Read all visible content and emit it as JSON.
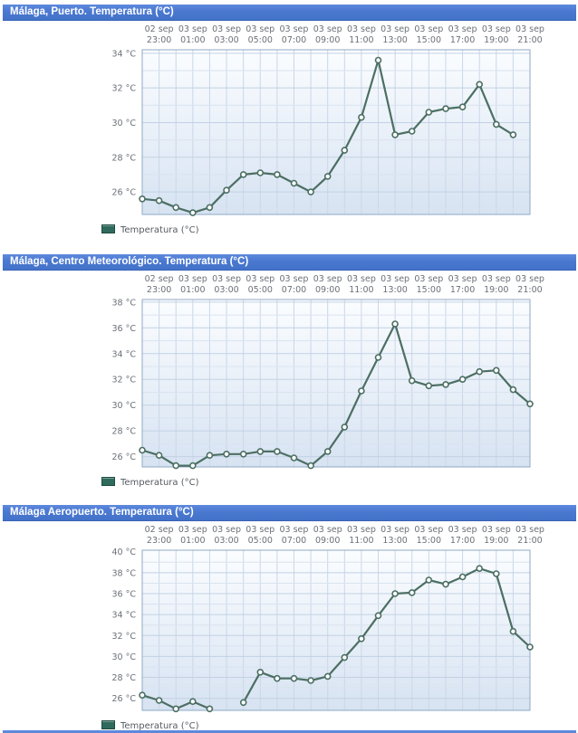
{
  "colors": {
    "header_bar": "#4A78D0",
    "header_text": "#FFFFFF",
    "line": "#4C6F63",
    "marker_fill": "#FFFFFF",
    "legend_swatch": "#2F6B5C",
    "plot_border": "#8FA8C6",
    "grid_vertical": "#C9D7E8",
    "grid_major": "#C2D1E4",
    "grid_minor": "#D9E3F0",
    "plot_bg_top": "#FBFDFF",
    "plot_bg_bottom": "#D7E3F2",
    "axis_text": "#6B7077"
  },
  "chart_data": [
    {
      "type": "line",
      "title": "Málaga, Puerto. Temperatura (°C)",
      "series_name": "Temperatura (°C)",
      "grid": true,
      "legend_position": "bottom-left",
      "x_ticks": [
        {
          "date": "02 sep",
          "time": "23:00"
        },
        {
          "date": "03 sep",
          "time": "01:00"
        },
        {
          "date": "03 sep",
          "time": "03:00"
        },
        {
          "date": "03 sep",
          "time": "05:00"
        },
        {
          "date": "03 sep",
          "time": "07:00"
        },
        {
          "date": "03 sep",
          "time": "09:00"
        },
        {
          "date": "03 sep",
          "time": "11:00"
        },
        {
          "date": "03 sep",
          "time": "13:00"
        },
        {
          "date": "03 sep",
          "time": "15:00"
        },
        {
          "date": "03 sep",
          "time": "17:00"
        },
        {
          "date": "03 sep",
          "time": "19:00"
        },
        {
          "date": "03 sep",
          "time": "21:00"
        }
      ],
      "hours": [
        "22:00",
        "23:00",
        "00:00",
        "01:00",
        "02:00",
        "03:00",
        "04:00",
        "05:00",
        "06:00",
        "07:00",
        "08:00",
        "09:00",
        "10:00",
        "11:00",
        "12:00",
        "13:00",
        "14:00",
        "15:00",
        "16:00",
        "17:00",
        "18:00",
        "19:00",
        "20:00",
        "21:00"
      ],
      "values": [
        25.6,
        25.5,
        25.1,
        24.8,
        25.1,
        26.1,
        27.0,
        27.1,
        27.0,
        26.5,
        26.0,
        26.9,
        28.4,
        30.3,
        33.6,
        29.3,
        29.5,
        30.6,
        30.8,
        30.9,
        32.2,
        29.9,
        29.3,
        null
      ],
      "ylim": [
        24.7,
        34.2
      ],
      "yticks": [
        26,
        28,
        30,
        32,
        34
      ]
    },
    {
      "type": "line",
      "title": "Málaga, Centro Meteorológico. Temperatura (°C)",
      "series_name": "Temperatura (°C)",
      "grid": true,
      "legend_position": "bottom-left",
      "x_ticks": [
        {
          "date": "02 sep",
          "time": "23:00"
        },
        {
          "date": "03 sep",
          "time": "01:00"
        },
        {
          "date": "03 sep",
          "time": "03:00"
        },
        {
          "date": "03 sep",
          "time": "05:00"
        },
        {
          "date": "03 sep",
          "time": "07:00"
        },
        {
          "date": "03 sep",
          "time": "09:00"
        },
        {
          "date": "03 sep",
          "time": "11:00"
        },
        {
          "date": "03 sep",
          "time": "13:00"
        },
        {
          "date": "03 sep",
          "time": "15:00"
        },
        {
          "date": "03 sep",
          "time": "17:00"
        },
        {
          "date": "03 sep",
          "time": "19:00"
        },
        {
          "date": "03 sep",
          "time": "21:00"
        }
      ],
      "hours": [
        "22:00",
        "23:00",
        "00:00",
        "01:00",
        "02:00",
        "03:00",
        "04:00",
        "05:00",
        "06:00",
        "07:00",
        "08:00",
        "09:00",
        "10:00",
        "11:00",
        "12:00",
        "13:00",
        "14:00",
        "15:00",
        "16:00",
        "17:00",
        "18:00",
        "19:00",
        "20:00",
        "21:00"
      ],
      "values": [
        26.5,
        26.1,
        25.3,
        25.3,
        26.1,
        26.2,
        26.2,
        26.4,
        26.4,
        25.9,
        25.3,
        26.4,
        28.3,
        31.1,
        33.7,
        36.3,
        31.9,
        31.5,
        31.6,
        32.0,
        32.6,
        32.7,
        31.2,
        30.1
      ],
      "ylim": [
        25.2,
        38.2
      ],
      "yticks": [
        26,
        28,
        30,
        32,
        34,
        36,
        38
      ]
    },
    {
      "type": "line",
      "title": "Málaga Aeropuerto. Temperatura (°C)",
      "series_name": "Temperatura (°C)",
      "grid": true,
      "legend_position": "bottom-left",
      "x_ticks": [
        {
          "date": "02 sep",
          "time": "23:00"
        },
        {
          "date": "03 sep",
          "time": "01:00"
        },
        {
          "date": "03 sep",
          "time": "03:00"
        },
        {
          "date": "03 sep",
          "time": "05:00"
        },
        {
          "date": "03 sep",
          "time": "07:00"
        },
        {
          "date": "03 sep",
          "time": "09:00"
        },
        {
          "date": "03 sep",
          "time": "11:00"
        },
        {
          "date": "03 sep",
          "time": "13:00"
        },
        {
          "date": "03 sep",
          "time": "15:00"
        },
        {
          "date": "03 sep",
          "time": "17:00"
        },
        {
          "date": "03 sep",
          "time": "19:00"
        },
        {
          "date": "03 sep",
          "time": "21:00"
        }
      ],
      "hours": [
        "22:00",
        "23:00",
        "00:00",
        "01:00",
        "02:00",
        "03:00",
        "04:00",
        "05:00",
        "06:00",
        "07:00",
        "08:00",
        "09:00",
        "10:00",
        "11:00",
        "12:00",
        "13:00",
        "14:00",
        "15:00",
        "16:00",
        "17:00",
        "18:00",
        "19:00",
        "20:00",
        "21:00"
      ],
      "values": [
        26.3,
        25.8,
        25.0,
        25.7,
        25.0,
        null,
        25.6,
        28.5,
        27.9,
        27.9,
        27.7,
        28.1,
        29.9,
        31.7,
        33.9,
        36.0,
        36.1,
        37.3,
        36.9,
        37.6,
        38.4,
        37.9,
        32.4,
        30.9
      ],
      "ylim": [
        24.85,
        40.15
      ],
      "yticks": [
        26,
        28,
        30,
        32,
        34,
        36,
        38,
        40
      ]
    }
  ]
}
